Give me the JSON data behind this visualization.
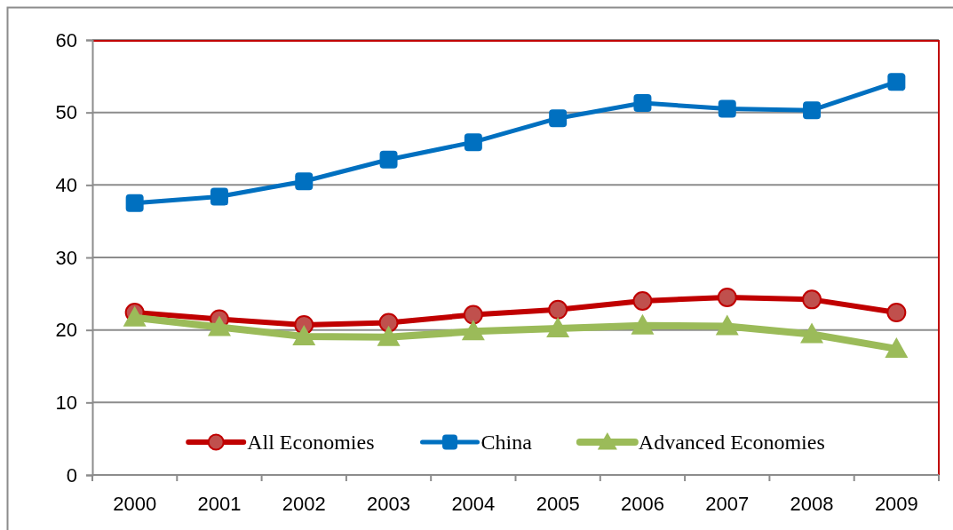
{
  "chart_data": {
    "type": "line",
    "categories": [
      "2000",
      "2001",
      "2002",
      "2003",
      "2004",
      "2005",
      "2006",
      "2007",
      "2008",
      "2009"
    ],
    "series": [
      {
        "name": "All Economies",
        "color": "#c00000",
        "marker": "circle",
        "values": [
          22.4,
          21.5,
          20.7,
          21.0,
          22.1,
          22.8,
          24.0,
          24.5,
          24.2,
          22.4
        ]
      },
      {
        "name": "China",
        "color": "#0070c0",
        "marker": "square",
        "values": [
          37.5,
          38.4,
          40.5,
          43.5,
          45.9,
          49.2,
          51.3,
          50.5,
          50.3,
          54.2
        ]
      },
      {
        "name": "Advanced Economies",
        "color": "#9bbb59",
        "marker": "triangle",
        "values": [
          21.7,
          20.4,
          19.1,
          19.0,
          19.8,
          20.2,
          20.6,
          20.5,
          19.4,
          17.4
        ]
      }
    ],
    "ylim": [
      0,
      60
    ],
    "yticks": [
      0,
      10,
      20,
      30,
      40,
      50,
      60
    ],
    "grid": "y",
    "legend": "bottom",
    "line_style": "solid"
  }
}
